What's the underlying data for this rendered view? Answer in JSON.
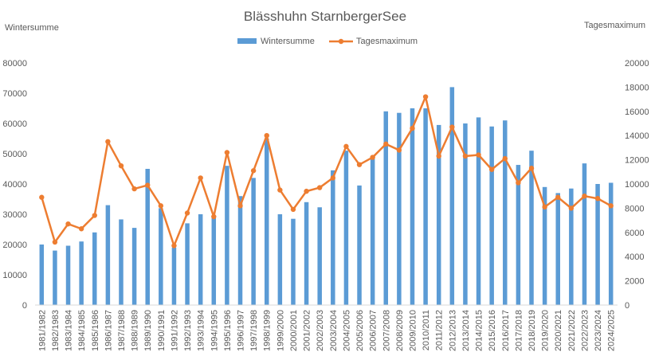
{
  "chart_data": {
    "type": "bar",
    "title": "Blässhuhn StarnbergerSee",
    "ylabel": "Wintersumme",
    "y2label": "Tagesmaximum",
    "legend_position": "top",
    "grid": false,
    "ylim": [
      0,
      80000
    ],
    "y2lim": [
      0,
      20000
    ],
    "yticks": [
      "0",
      "10000",
      "20000",
      "30000",
      "40000",
      "50000",
      "60000",
      "70000",
      "80000"
    ],
    "y2ticks": [
      "0",
      "2000",
      "4000",
      "6000",
      "8000",
      "10000",
      "12000",
      "14000",
      "16000",
      "18000",
      "20000"
    ],
    "categories": [
      "1981/1982",
      "1982/1983",
      "1983/1984",
      "1984/1985",
      "1985/1986",
      "1986/1987",
      "1987/1988",
      "1988/1989",
      "1989/1990",
      "1990/1991",
      "1991/1992",
      "1992/1993",
      "1993/1994",
      "1994/1995",
      "1995/1996",
      "1996/1997",
      "1997/1998",
      "1998/1999",
      "1999/2000",
      "2000/2001",
      "2001/2002",
      "2002/2003",
      "2003/2004",
      "2004/2005",
      "2005/2006",
      "2006/2007",
      "2007/2008",
      "2008/2009",
      "2009/2010",
      "2010/2011",
      "2011/2012",
      "2012/2013",
      "2013/2014",
      "2014/2015",
      "2015/2016",
      "2016/2017",
      "2017/2018",
      "2018/2019",
      "2019/2020",
      "2020/2021",
      "2021/2022",
      "2022/2023",
      "2023/2024",
      "2024/2025"
    ],
    "series": [
      {
        "name": "Wintersumme",
        "type": "bar",
        "axis": "left",
        "color": "#5B9BD5",
        "values": [
          20000,
          18000,
          19600,
          21000,
          24000,
          33000,
          28300,
          25500,
          45000,
          32000,
          19000,
          27000,
          30000,
          29000,
          46000,
          36000,
          42000,
          55000,
          30000,
          28500,
          34000,
          32300,
          44500,
          51000,
          39500,
          48500,
          64000,
          63500,
          65000,
          65000,
          59500,
          72000,
          60000,
          62000,
          59000,
          61000,
          46300,
          51000,
          39000,
          37000,
          38500,
          46800,
          40000,
          40400
        ]
      },
      {
        "name": "Tagesmaximum",
        "type": "line",
        "axis": "right",
        "color": "#ED7D31",
        "values": [
          8900,
          5200,
          6700,
          6300,
          7400,
          13500,
          11500,
          9600,
          9900,
          8200,
          4900,
          7600,
          10500,
          7300,
          12600,
          8200,
          11100,
          14000,
          9500,
          7900,
          9400,
          9700,
          10500,
          13100,
          11600,
          12200,
          13300,
          12800,
          14600,
          17200,
          12300,
          14700,
          12300,
          12400,
          11200,
          12100,
          10100,
          11300,
          8100,
          8900,
          8000,
          9000,
          8800,
          8200
        ]
      }
    ]
  }
}
